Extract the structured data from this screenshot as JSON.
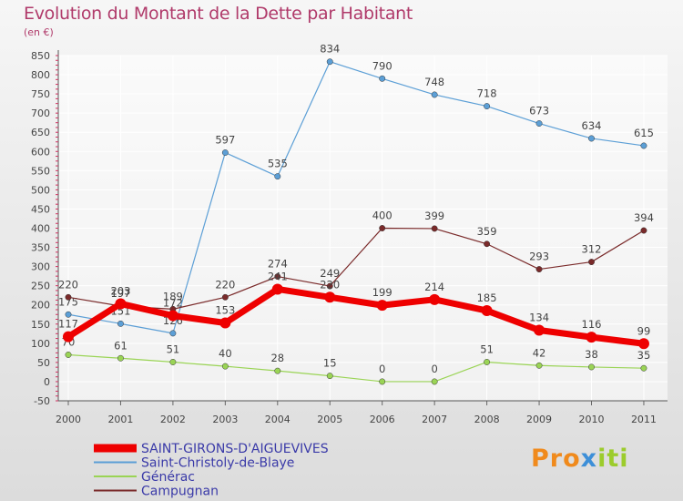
{
  "chart_data": {
    "type": "line",
    "title": "Evolution du Montant de la Dette par Habitant",
    "ylabel": "(en €)",
    "xlabel": "",
    "ylim": [
      -50,
      850
    ],
    "yticks": [
      -50,
      0,
      50,
      100,
      150,
      200,
      250,
      300,
      350,
      400,
      450,
      500,
      550,
      600,
      650,
      700,
      750,
      800,
      850
    ],
    "x": [
      "2000",
      "2001",
      "2002",
      "2003",
      "2004",
      "2005",
      "2006",
      "2007",
      "2008",
      "2009",
      "2010",
      "2011"
    ],
    "series": [
      {
        "name": "SAINT-GIRONS-D'AIGUEVIVES",
        "color": "#ee0000",
        "width": 7,
        "values": [
          117,
          203,
          172,
          153,
          241,
          220,
          199,
          214,
          185,
          134,
          116,
          99
        ]
      },
      {
        "name": "Saint-Christoly-de-Blaye",
        "color": "#5c9fd6",
        "width": 1.2,
        "values": [
          175,
          151,
          126,
          597,
          535,
          834,
          790,
          748,
          718,
          673,
          634,
          615
        ]
      },
      {
        "name": "Générac",
        "color": "#9ad455",
        "width": 1.2,
        "values": [
          70,
          61,
          51,
          40,
          28,
          15,
          0,
          0,
          51,
          42,
          38,
          35
        ]
      },
      {
        "name": "Campugnan",
        "color": "#7a2a2a",
        "width": 1.2,
        "values": [
          220,
          197,
          189,
          220,
          274,
          249,
          400,
          399,
          359,
          293,
          312,
          394
        ]
      }
    ]
  },
  "logo": {
    "p1": "Pro",
    "p2": "x",
    "p3": "iti"
  },
  "colors": {
    "title": "#b03a6a",
    "legend_text": "#3a3aa8"
  }
}
